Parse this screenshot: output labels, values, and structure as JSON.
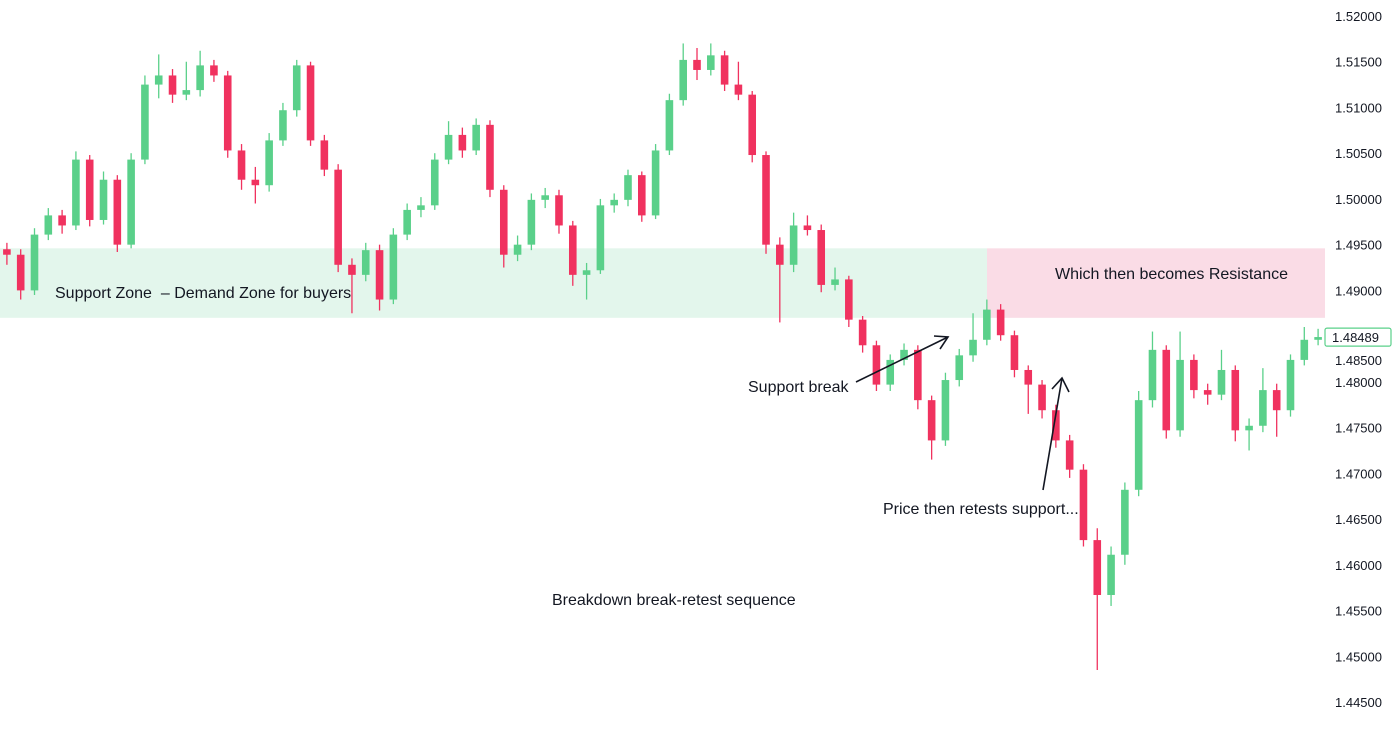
{
  "chart_data": {
    "type": "candlestick",
    "title": "",
    "ylim": [
      1.445,
      1.52
    ],
    "y_ticks": [
      "1.52000",
      "1.51500",
      "1.51000",
      "1.50500",
      "1.50000",
      "1.49500",
      "1.49000",
      "1.48500",
      "1.48000",
      "1.47500",
      "1.47000",
      "1.46500",
      "1.46000",
      "1.45500",
      "1.45000",
      "1.44500"
    ],
    "y_tick_values": [
      1.52,
      1.515,
      1.51,
      1.505,
      1.5,
      1.495,
      1.49,
      1.485,
      1.48,
      1.475,
      1.47,
      1.465,
      1.46,
      1.455,
      1.45,
      1.445
    ],
    "last_price_label": "1.48489",
    "last_price": 1.48489,
    "grid": false,
    "colors": {
      "up": "#5ad08a",
      "down": "#f0325f",
      "support_zone": "#e3f6ec",
      "resistance_zone": "#fadce6",
      "last_price": "#5ad08a",
      "text": "#131722"
    },
    "zones": [
      {
        "kind": "support",
        "top": 1.4946,
        "bottom": 1.487,
        "label": "Support Zone  – Demand Zone for buyers"
      },
      {
        "kind": "resistance",
        "top": 1.4946,
        "bottom": 1.487,
        "label": "Which then becomes Resistance"
      }
    ],
    "annotations": {
      "support_break": "Support break",
      "retest": "Price then retests support...",
      "caption": "Breakdown break-retest sequence"
    },
    "candles_ohlc": [
      [
        1.4945,
        1.4952,
        1.4928,
        1.4939
      ],
      [
        1.4939,
        1.4945,
        1.489,
        1.49
      ],
      [
        1.49,
        1.4968,
        1.4895,
        1.4961
      ],
      [
        1.4961,
        1.499,
        1.4955,
        1.4982
      ],
      [
        1.4982,
        1.4988,
        1.4962,
        1.4971
      ],
      [
        1.4971,
        1.5052,
        1.4966,
        1.5043
      ],
      [
        1.5043,
        1.5048,
        1.497,
        1.4977
      ],
      [
        1.4977,
        1.503,
        1.4972,
        1.5021
      ],
      [
        1.5021,
        1.5026,
        1.4942,
        1.495
      ],
      [
        1.495,
        1.505,
        1.4946,
        1.5043
      ],
      [
        1.5043,
        1.5135,
        1.5038,
        1.5125
      ],
      [
        1.5125,
        1.5158,
        1.511,
        1.5135
      ],
      [
        1.5135,
        1.5142,
        1.5105,
        1.5114
      ],
      [
        1.5114,
        1.515,
        1.5108,
        1.5119
      ],
      [
        1.5119,
        1.5162,
        1.5112,
        1.5146
      ],
      [
        1.5146,
        1.5152,
        1.5128,
        1.5135
      ],
      [
        1.5135,
        1.514,
        1.5045,
        1.5053
      ],
      [
        1.5053,
        1.506,
        1.501,
        1.5021
      ],
      [
        1.5021,
        1.5035,
        1.4995,
        1.5015
      ],
      [
        1.5015,
        1.5072,
        1.5008,
        1.5064
      ],
      [
        1.5064,
        1.5105,
        1.5058,
        1.5097
      ],
      [
        1.5097,
        1.5152,
        1.509,
        1.5146
      ],
      [
        1.5146,
        1.515,
        1.5058,
        1.5064
      ],
      [
        1.5064,
        1.507,
        1.5025,
        1.5032
      ],
      [
        1.5032,
        1.5038,
        1.492,
        1.4928
      ],
      [
        1.4928,
        1.4935,
        1.4875,
        1.4917
      ],
      [
        1.4917,
        1.4952,
        1.491,
        1.4944
      ],
      [
        1.4944,
        1.495,
        1.4878,
        1.489
      ],
      [
        1.489,
        1.4968,
        1.4885,
        1.4961
      ],
      [
        1.4961,
        1.4995,
        1.4955,
        1.4988
      ],
      [
        1.4988,
        1.5002,
        1.498,
        1.4993
      ],
      [
        1.4993,
        1.505,
        1.4988,
        1.5043
      ],
      [
        1.5043,
        1.5085,
        1.5038,
        1.507
      ],
      [
        1.507,
        1.5078,
        1.5045,
        1.5053
      ],
      [
        1.5053,
        1.5088,
        1.5048,
        1.5081
      ],
      [
        1.5081,
        1.5086,
        1.5002,
        1.501
      ],
      [
        1.501,
        1.5015,
        1.4925,
        1.4939
      ],
      [
        1.4939,
        1.496,
        1.4932,
        1.495
      ],
      [
        1.495,
        1.5006,
        1.4944,
        1.4999
      ],
      [
        1.4999,
        1.5012,
        1.499,
        1.5004
      ],
      [
        1.5004,
        1.501,
        1.4962,
        1.4971
      ],
      [
        1.4971,
        1.4976,
        1.4905,
        1.4917
      ],
      [
        1.4917,
        1.493,
        1.489,
        1.4922
      ],
      [
        1.4922,
        1.5,
        1.4918,
        1.4993
      ],
      [
        1.4993,
        1.5006,
        1.4985,
        1.4999
      ],
      [
        1.4999,
        1.5032,
        1.4992,
        1.5026
      ],
      [
        1.5026,
        1.503,
        1.4975,
        1.4982
      ],
      [
        1.4982,
        1.506,
        1.4978,
        1.5053
      ],
      [
        1.5053,
        1.5115,
        1.5048,
        1.5108
      ],
      [
        1.5108,
        1.517,
        1.5102,
        1.5152
      ],
      [
        1.5152,
        1.5165,
        1.513,
        1.5141
      ],
      [
        1.5141,
        1.517,
        1.5135,
        1.5157
      ],
      [
        1.5157,
        1.5162,
        1.5118,
        1.5125
      ],
      [
        1.5125,
        1.515,
        1.5108,
        1.5114
      ],
      [
        1.5114,
        1.5118,
        1.504,
        1.5048
      ],
      [
        1.5048,
        1.5052,
        1.494,
        1.495
      ],
      [
        1.495,
        1.4958,
        1.4865,
        1.4928
      ],
      [
        1.4928,
        1.4985,
        1.492,
        1.4971
      ],
      [
        1.4971,
        1.4982,
        1.496,
        1.4966
      ],
      [
        1.4966,
        1.4972,
        1.4898,
        1.4906
      ],
      [
        1.4906,
        1.4925,
        1.49,
        1.4912
      ],
      [
        1.4912,
        1.4916,
        1.486,
        1.4868
      ],
      [
        1.4868,
        1.4872,
        1.4832,
        1.484
      ],
      [
        1.484,
        1.4845,
        1.479,
        1.4797
      ],
      [
        1.4797,
        1.483,
        1.479,
        1.4824
      ],
      [
        1.4824,
        1.4842,
        1.4818,
        1.4835
      ],
      [
        1.4835,
        1.484,
        1.477,
        1.478
      ],
      [
        1.478,
        1.4785,
        1.4715,
        1.4736
      ],
      [
        1.4736,
        1.481,
        1.473,
        1.4802
      ],
      [
        1.4802,
        1.4836,
        1.4795,
        1.4829
      ],
      [
        1.4829,
        1.4875,
        1.4822,
        1.4846
      ],
      [
        1.4846,
        1.489,
        1.484,
        1.4879
      ],
      [
        1.4879,
        1.4885,
        1.4845,
        1.4851
      ],
      [
        1.4851,
        1.4856,
        1.4805,
        1.4813
      ],
      [
        1.4813,
        1.4818,
        1.4765,
        1.4797
      ],
      [
        1.4797,
        1.4802,
        1.476,
        1.4769
      ],
      [
        1.4769,
        1.4775,
        1.4728,
        1.4736
      ],
      [
        1.4736,
        1.4742,
        1.4695,
        1.4704
      ],
      [
        1.4704,
        1.471,
        1.462,
        1.4627
      ],
      [
        1.4627,
        1.464,
        1.4485,
        1.4567
      ],
      [
        1.4567,
        1.462,
        1.4555,
        1.4611
      ],
      [
        1.4611,
        1.469,
        1.46,
        1.4682
      ],
      [
        1.4682,
        1.479,
        1.4675,
        1.478
      ],
      [
        1.478,
        1.4855,
        1.4772,
        1.4835
      ],
      [
        1.4835,
        1.484,
        1.4738,
        1.4747
      ],
      [
        1.4747,
        1.4855,
        1.474,
        1.4824
      ],
      [
        1.4824,
        1.483,
        1.4782,
        1.4791
      ],
      [
        1.4791,
        1.4798,
        1.4775,
        1.4786
      ],
      [
        1.4786,
        1.4835,
        1.478,
        1.4813
      ],
      [
        1.4813,
        1.4818,
        1.4735,
        1.4747
      ],
      [
        1.4747,
        1.476,
        1.4725,
        1.4752
      ],
      [
        1.4752,
        1.4815,
        1.4745,
        1.4791
      ],
      [
        1.4791,
        1.4798,
        1.474,
        1.4769
      ],
      [
        1.4769,
        1.483,
        1.4762,
        1.4824
      ],
      [
        1.4824,
        1.486,
        1.4818,
        1.4846
      ],
      [
        1.4846,
        1.4858,
        1.484,
        1.4849
      ]
    ]
  }
}
